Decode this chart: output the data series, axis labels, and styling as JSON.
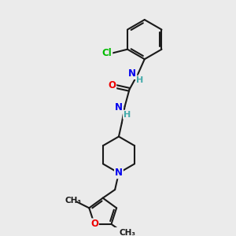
{
  "background_color": "#ebebeb",
  "bond_color": "#1a1a1a",
  "bond_width": 1.5,
  "atom_colors": {
    "C": "#1a1a1a",
    "N": "#0000ee",
    "O": "#ee0000",
    "Cl": "#00bb00",
    "H": "#44aaaa"
  },
  "figsize": [
    3.0,
    3.0
  ],
  "dpi": 100
}
